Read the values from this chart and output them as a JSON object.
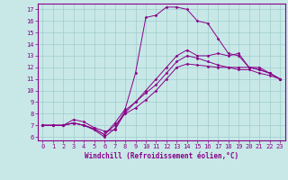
{
  "xlabel": "Windchill (Refroidissement éolien,°C)",
  "bg_color": "#c8e8e8",
  "grid_color": "#a0cccc",
  "line_color": "#880088",
  "xlim": [
    -0.5,
    23.5
  ],
  "ylim": [
    5.7,
    17.5
  ],
  "xticks": [
    0,
    1,
    2,
    3,
    4,
    5,
    6,
    7,
    8,
    9,
    10,
    11,
    12,
    13,
    14,
    15,
    16,
    17,
    18,
    19,
    20,
    21,
    22,
    23
  ],
  "yticks": [
    6,
    7,
    8,
    9,
    10,
    11,
    12,
    13,
    14,
    15,
    16,
    17
  ],
  "lines": [
    {
      "x": [
        0,
        1,
        2,
        3,
        4,
        5,
        6,
        7,
        8,
        9,
        10,
        11,
        12,
        13,
        14,
        15,
        16,
        17,
        18,
        19,
        20,
        21,
        22,
        23
      ],
      "y": [
        7.0,
        7.0,
        7.0,
        7.2,
        7.0,
        6.6,
        6.0,
        6.7,
        8.3,
        9.0,
        10.0,
        11.0,
        12.0,
        13.0,
        13.5,
        13.0,
        13.0,
        13.2,
        13.0,
        13.2,
        12.0,
        11.8,
        11.5,
        11.0
      ]
    },
    {
      "x": [
        0,
        1,
        2,
        3,
        4,
        5,
        6,
        7,
        8,
        9,
        10,
        11,
        12,
        13,
        14,
        15,
        16,
        17,
        18,
        19,
        20,
        21,
        22,
        23
      ],
      "y": [
        7.0,
        7.0,
        7.0,
        7.2,
        7.0,
        6.7,
        6.2,
        7.0,
        8.0,
        8.5,
        9.2,
        10.0,
        11.0,
        12.0,
        12.3,
        12.2,
        12.1,
        12.0,
        12.0,
        12.0,
        12.0,
        11.8,
        11.5,
        11.0
      ]
    },
    {
      "x": [
        0,
        1,
        2,
        3,
        4,
        5,
        6,
        7,
        8,
        9,
        10,
        11,
        12,
        13,
        14,
        15,
        16,
        17,
        18,
        19,
        20,
        21,
        22,
        23
      ],
      "y": [
        7.0,
        7.0,
        7.0,
        7.2,
        7.0,
        6.7,
        6.2,
        7.2,
        8.4,
        11.5,
        16.3,
        16.5,
        17.2,
        17.2,
        17.0,
        16.0,
        15.8,
        14.5,
        13.2,
        13.0,
        12.0,
        12.0,
        11.5,
        11.0
      ]
    },
    {
      "x": [
        0,
        1,
        2,
        3,
        4,
        5,
        6,
        7,
        8,
        9,
        10,
        11,
        12,
        13,
        14,
        15,
        16,
        17,
        18,
        19,
        20,
        21,
        22,
        23
      ],
      "y": [
        7.0,
        7.0,
        7.0,
        7.5,
        7.3,
        6.8,
        6.5,
        6.6,
        8.1,
        9.0,
        9.8,
        10.5,
        11.5,
        12.5,
        13.0,
        12.8,
        12.5,
        12.2,
        12.0,
        11.8,
        11.8,
        11.5,
        11.3,
        11.0
      ]
    }
  ]
}
